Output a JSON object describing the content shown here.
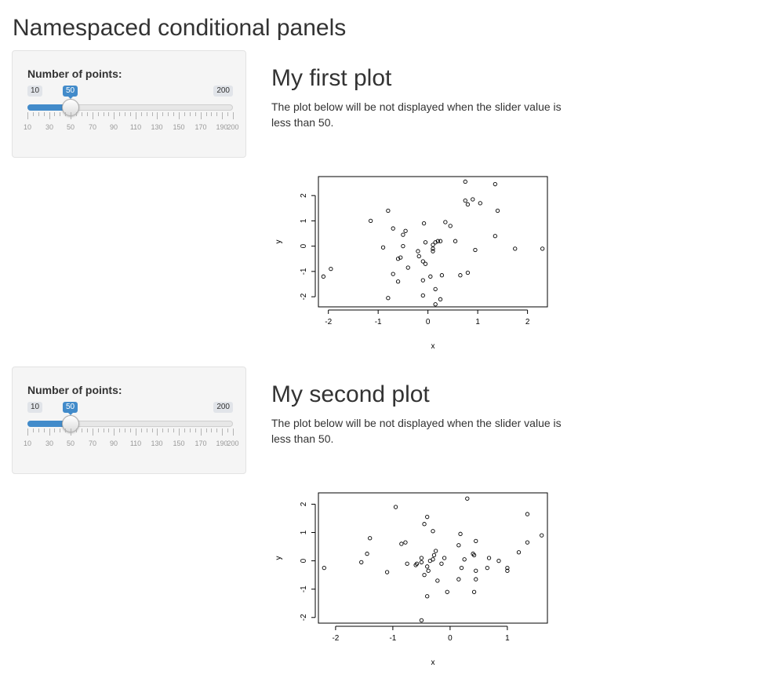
{
  "page": {
    "title": "Namespaced conditional panels"
  },
  "panels": [
    {
      "slider": {
        "label": "Number of points:",
        "min_label": "10",
        "max_label": "200",
        "value_label": "50",
        "min": 10,
        "max": 200,
        "value": 50,
        "accent_color": "#428bca",
        "tick_labels": [
          "10",
          "30",
          "50",
          "70",
          "90",
          "110",
          "130",
          "150",
          "170",
          "190",
          "200"
        ],
        "tick_values": [
          10,
          30,
          50,
          70,
          90,
          110,
          130,
          150,
          170,
          190,
          200
        ]
      },
      "heading": "My first plot",
      "description": "The plot below will be not displayed when the slider value is less than 50."
    },
    {
      "slider": {
        "label": "Number of points:",
        "min_label": "10",
        "max_label": "200",
        "value_label": "50",
        "min": 10,
        "max": 200,
        "value": 50,
        "accent_color": "#428bca",
        "tick_labels": [
          "10",
          "30",
          "50",
          "70",
          "90",
          "110",
          "130",
          "150",
          "170",
          "190",
          "200"
        ],
        "tick_values": [
          10,
          30,
          50,
          70,
          90,
          110,
          130,
          150,
          170,
          190,
          200
        ]
      },
      "heading": "My second plot",
      "description": "The plot below will be not displayed when the slider value is less than 50."
    }
  ],
  "chart_data": [
    {
      "type": "scatter",
      "xlabel": "x",
      "ylabel": "y",
      "xlim": [
        -2.2,
        2.4
      ],
      "ylim": [
        -2.4,
        2.75
      ],
      "xticks": [
        -2,
        -1,
        0,
        1,
        2
      ],
      "yticks": [
        -2,
        -1,
        0,
        1,
        2
      ],
      "x_tick_labels": [
        "-2",
        "-1",
        "0",
        "1",
        "2"
      ],
      "y_tick_labels": [
        "-2",
        "-1",
        "0",
        "1",
        "2"
      ],
      "grid": false,
      "points": [
        [
          -2.1,
          -1.2
        ],
        [
          -1.95,
          -0.9
        ],
        [
          -1.15,
          1.0
        ],
        [
          -0.8,
          1.4
        ],
        [
          -0.9,
          -0.05
        ],
        [
          -0.7,
          0.7
        ],
        [
          -0.5,
          0.45
        ],
        [
          -0.45,
          0.6
        ],
        [
          -0.5,
          0.0
        ],
        [
          -0.55,
          -0.45
        ],
        [
          -0.6,
          -0.5
        ],
        [
          -0.4,
          -0.85
        ],
        [
          -0.7,
          -1.1
        ],
        [
          -0.6,
          -1.4
        ],
        [
          -0.8,
          -2.05
        ],
        [
          -0.2,
          -0.2
        ],
        [
          -0.18,
          -0.4
        ],
        [
          -0.1,
          -0.6
        ],
        [
          -0.05,
          -0.7
        ],
        [
          -0.05,
          0.15
        ],
        [
          -0.08,
          0.9
        ],
        [
          0.1,
          0.05
        ],
        [
          0.15,
          0.15
        ],
        [
          0.2,
          0.2
        ],
        [
          0.25,
          0.2
        ],
        [
          0.1,
          -0.2
        ],
        [
          0.1,
          -0.1
        ],
        [
          0.05,
          -1.2
        ],
        [
          0.15,
          -1.7
        ],
        [
          -0.1,
          -1.35
        ],
        [
          -0.1,
          -1.95
        ],
        [
          0.15,
          -2.3
        ],
        [
          0.25,
          -2.1
        ],
        [
          0.28,
          -1.15
        ],
        [
          0.35,
          0.95
        ],
        [
          0.45,
          0.8
        ],
        [
          0.55,
          0.2
        ],
        [
          0.65,
          -1.15
        ],
        [
          0.8,
          -1.05
        ],
        [
          0.75,
          1.8
        ],
        [
          0.8,
          1.65
        ],
        [
          0.9,
          1.85
        ],
        [
          1.05,
          1.7
        ],
        [
          0.75,
          2.55
        ],
        [
          1.35,
          2.45
        ],
        [
          1.4,
          1.4
        ],
        [
          1.35,
          0.4
        ],
        [
          0.95,
          -0.15
        ],
        [
          1.75,
          -0.1
        ],
        [
          2.3,
          -0.1
        ]
      ]
    },
    {
      "type": "scatter",
      "xlabel": "x",
      "ylabel": "y",
      "xlim": [
        -2.3,
        1.7
      ],
      "ylim": [
        -2.2,
        2.4
      ],
      "xticks": [
        -2,
        -1,
        0,
        1
      ],
      "yticks": [
        -2,
        -1,
        0,
        1,
        2
      ],
      "x_tick_labels": [
        "-2",
        "-1",
        "0",
        "1"
      ],
      "y_tick_labels": [
        "-2",
        "-1",
        "0",
        "1",
        "2"
      ],
      "grid": false,
      "points": [
        [
          -2.2,
          -0.25
        ],
        [
          -1.55,
          -0.05
        ],
        [
          -1.45,
          0.25
        ],
        [
          -1.4,
          0.8
        ],
        [
          -1.1,
          -0.4
        ],
        [
          -0.95,
          1.9
        ],
        [
          -0.85,
          0.6
        ],
        [
          -0.78,
          0.65
        ],
        [
          -0.75,
          -0.1
        ],
        [
          -0.6,
          -0.15
        ],
        [
          -0.58,
          -0.1
        ],
        [
          -0.5,
          0.1
        ],
        [
          -0.5,
          -0.05
        ],
        [
          -0.45,
          -0.5
        ],
        [
          -0.45,
          1.3
        ],
        [
          -0.4,
          1.55
        ],
        [
          -0.4,
          -0.2
        ],
        [
          -0.38,
          -0.35
        ],
        [
          -0.4,
          -1.25
        ],
        [
          -0.35,
          0.0
        ],
        [
          -0.3,
          0.05
        ],
        [
          -0.3,
          1.05
        ],
        [
          -0.28,
          0.2
        ],
        [
          -0.25,
          0.35
        ],
        [
          -0.22,
          -0.7
        ],
        [
          -0.15,
          -0.1
        ],
        [
          -0.1,
          0.1
        ],
        [
          -0.05,
          -1.1
        ],
        [
          0.15,
          0.55
        ],
        [
          0.15,
          -0.65
        ],
        [
          0.18,
          0.95
        ],
        [
          0.2,
          -0.25
        ],
        [
          0.25,
          0.05
        ],
        [
          0.3,
          2.2
        ],
        [
          0.4,
          0.25
        ],
        [
          0.42,
          0.2
        ],
        [
          0.42,
          -1.1
        ],
        [
          0.45,
          0.7
        ],
        [
          0.45,
          -0.35
        ],
        [
          0.45,
          -0.65
        ],
        [
          0.65,
          -0.25
        ],
        [
          0.68,
          0.1
        ],
        [
          0.85,
          0.0
        ],
        [
          1.0,
          -0.35
        ],
        [
          1.0,
          -0.25
        ],
        [
          1.2,
          0.3
        ],
        [
          1.35,
          0.65
        ],
        [
          1.35,
          1.65
        ],
        [
          1.6,
          0.9
        ],
        [
          -0.5,
          -2.1
        ]
      ]
    }
  ]
}
